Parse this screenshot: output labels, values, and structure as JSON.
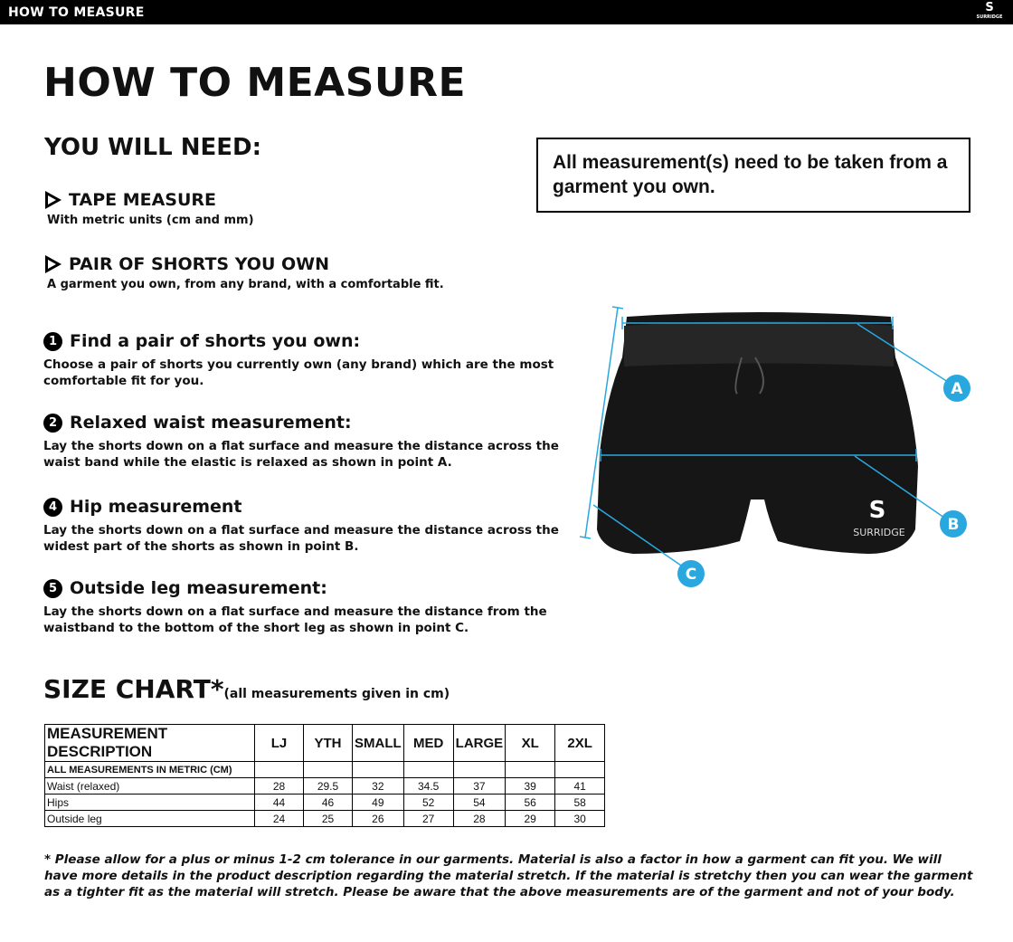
{
  "header": {
    "title": "HOW TO MEASURE",
    "logo_text": "SURRIDGE"
  },
  "page_title": "HOW TO MEASURE",
  "need": {
    "title": "YOU WILL NEED:",
    "items": [
      {
        "label": "TAPE MEASURE",
        "desc": "With metric units (cm and mm)"
      },
      {
        "label": "PAIR OF SHORTS YOU OWN",
        "desc": "A garment you own, from any brand, with a comfortable fit."
      }
    ]
  },
  "note": "All measurement(s) need to be taken from a garment you own.",
  "steps": [
    {
      "num": "1",
      "title": "Find a pair of shorts you own:",
      "text": "Choose a pair of shorts you currently own (any brand) which are the most comfortable fit for you."
    },
    {
      "num": "2",
      "title": "Relaxed waist measurement:",
      "text": "Lay the shorts down on a flat surface and measure the distance across the waist band while the elastic is relaxed as shown in point A."
    },
    {
      "num": "4",
      "title": "Hip measurement",
      "text": "Lay the shorts down on a flat surface and measure the distance across the widest part of the shorts as shown in point B."
    },
    {
      "num": "5",
      "title": "Outside leg measurement:",
      "text": "Lay the shorts down on a flat surface and measure the distance from the waistband to the bottom of the short leg as shown in point C."
    }
  ],
  "diagram": {
    "points": [
      "A",
      "B",
      "C"
    ],
    "brand": "SURRIDGE",
    "accent": "#29a8e0"
  },
  "size_chart": {
    "title": "SIZE CHART*",
    "note": "(all measurements given in cm)",
    "columns": [
      "MEASUREMENT DESCRIPTION",
      "LJ",
      "YTH",
      "SMALL",
      "MED",
      "LARGE",
      "XL",
      "2XL"
    ],
    "subheader": "ALL MEASUREMENTS IN METRIC (CM)",
    "rows": [
      [
        "Waist (relaxed)",
        "28",
        "29.5",
        "32",
        "34.5",
        "37",
        "39",
        "41"
      ],
      [
        "Hips",
        "44",
        "46",
        "49",
        "52",
        "54",
        "56",
        "58"
      ],
      [
        "Outside  leg",
        "24",
        "25",
        "26",
        "27",
        "28",
        "29",
        "30"
      ]
    ]
  },
  "footnote": "* Please allow for a plus or minus 1-2 cm tolerance in our garments. Material is also a factor in how a garment can fit you. We will have more details in the product description regarding the material stretch.  If the material is stretchy then you can wear the garment as a tighter fit as the material will stretch.  Please be aware that the above measurements are of the garment and not of your body."
}
